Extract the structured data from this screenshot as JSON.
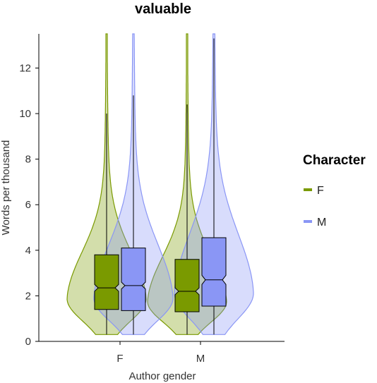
{
  "chart_data": {
    "type": "violin",
    "title": "valuable",
    "xlabel": "Author gender",
    "ylabel": "Words per thousand",
    "categories": [
      "F",
      "M"
    ],
    "ylim": [
      0,
      13.5
    ],
    "yticks": [
      0,
      2,
      4,
      6,
      8,
      10,
      12
    ],
    "grid": false,
    "legend": {
      "title": "Character",
      "position": "right",
      "entries": [
        {
          "label": "F",
          "color": "#7a9a00"
        },
        {
          "label": "M",
          "color": "#8a96f5"
        }
      ]
    },
    "series": [
      {
        "name": "F",
        "color": "#7a9a00",
        "groups": [
          {
            "category": "F",
            "min": 0.3,
            "q1": 1.4,
            "median": 2.35,
            "q3": 3.8,
            "whisker_high": 10.0,
            "max": 13.5,
            "notch_low": 2.2,
            "notch_high": 2.5
          },
          {
            "category": "M",
            "min": 0.3,
            "q1": 1.3,
            "median": 2.2,
            "q3": 3.6,
            "whisker_high": 10.4,
            "max": 13.5,
            "notch_low": 2.05,
            "notch_high": 2.35
          }
        ]
      },
      {
        "name": "M",
        "color": "#8a96f5",
        "groups": [
          {
            "category": "F",
            "min": 0.3,
            "q1": 1.35,
            "median": 2.45,
            "q3": 4.1,
            "whisker_high": 10.8,
            "max": 13.5,
            "notch_low": 2.3,
            "notch_high": 2.6
          },
          {
            "category": "M",
            "min": 0.3,
            "q1": 1.55,
            "median": 2.7,
            "q3": 4.55,
            "whisker_high": 13.3,
            "max": 13.5,
            "notch_low": 2.5,
            "notch_high": 2.9
          }
        ]
      }
    ]
  }
}
